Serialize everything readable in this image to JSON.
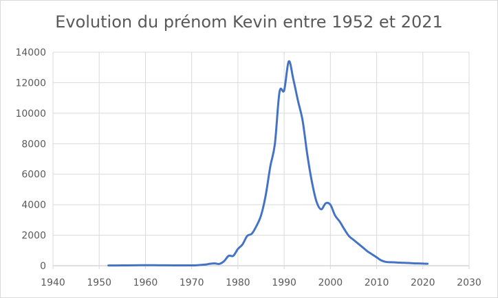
{
  "chart_data": {
    "type": "line",
    "title": "Evolution du prénom Kevin entre 1952 et 2021",
    "xlabel": "",
    "ylabel": "",
    "xlim": [
      1940,
      2030
    ],
    "ylim": [
      0,
      14000
    ],
    "xticks": [
      1940,
      1950,
      1960,
      1970,
      1980,
      1990,
      2000,
      2010,
      2020,
      2030
    ],
    "yticks": [
      0,
      2000,
      4000,
      6000,
      8000,
      10000,
      12000,
      14000
    ],
    "grid": true,
    "legend": "none",
    "series": [
      {
        "color": "#4472c4",
        "x": [
          1952,
          1955,
          1958,
          1960,
          1963,
          1966,
          1969,
          1971,
          1973,
          1974,
          1975,
          1976,
          1977,
          1978,
          1979,
          1980,
          1981,
          1982,
          1983,
          1984,
          1985,
          1986,
          1987,
          1988,
          1989,
          1990,
          1991,
          1992,
          1993,
          1994,
          1995,
          1996,
          1997,
          1998,
          1999,
          2000,
          2001,
          2002,
          2003,
          2004,
          2005,
          2006,
          2007,
          2008,
          2009,
          2010,
          2011,
          2012,
          2013,
          2014,
          2015,
          2016,
          2017,
          2018,
          2019,
          2020,
          2021
        ],
        "y": [
          15,
          20,
          30,
          35,
          30,
          25,
          20,
          30,
          80,
          130,
          150,
          120,
          300,
          650,
          650,
          1100,
          1400,
          1950,
          2100,
          2600,
          3300,
          4600,
          6500,
          8000,
          11400,
          11500,
          13400,
          12200,
          10800,
          9500,
          7300,
          5500,
          4200,
          3700,
          4100,
          4000,
          3300,
          2900,
          2400,
          1950,
          1700,
          1450,
          1200,
          950,
          750,
          550,
          350,
          250,
          230,
          220,
          200,
          190,
          180,
          160,
          150,
          140,
          130
        ]
      }
    ]
  }
}
